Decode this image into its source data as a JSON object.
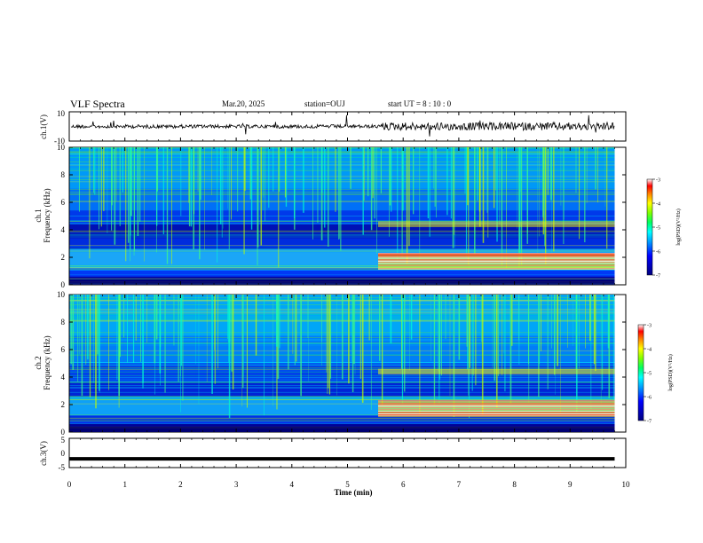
{
  "header": {
    "title": "VLF Spectra",
    "date": "Mar.20, 2025",
    "station": "station=OUJ",
    "start": "start  UT =   8  : 10 : 0"
  },
  "chart_data": [
    {
      "type": "line",
      "panel": "ch1-waveform",
      "ylabel": "ch.1(V)",
      "ylim": [
        -10,
        10
      ],
      "ytick_labels": [
        "10",
        "-10"
      ],
      "xlim": [
        0,
        10
      ],
      "note_values": "noise-like waveform centered at 0 V, amplitude increases after ~5.6 min"
    },
    {
      "type": "heatmap",
      "panel": "ch1-spectrogram",
      "ylabel": "ch.1\nFrequency (kHz)",
      "ylabel_line1": "ch.1",
      "ylabel_line2": "Frequency (kHz)",
      "xlim": [
        0,
        10
      ],
      "ylim": [
        0,
        10
      ],
      "yticks": [
        0,
        2,
        4,
        6,
        8,
        10
      ],
      "ytick_labels": [
        "0",
        "2",
        "4",
        "6",
        "8",
        "10"
      ],
      "data_x_end": 9.8,
      "colorbar": {
        "label": "log(PSD)(V²/Hz)",
        "range": [
          -7,
          -3
        ],
        "tick_labels": [
          "-3",
          "-4",
          "-5",
          "-6",
          "-7"
        ]
      }
    },
    {
      "type": "heatmap",
      "panel": "ch2-spectrogram",
      "ylabel_line1": "ch.2",
      "ylabel_line2": "Frequency (kHz)",
      "xlim": [
        0,
        10
      ],
      "ylim": [
        0,
        10
      ],
      "yticks": [
        0,
        2,
        4,
        6,
        8,
        10
      ],
      "ytick_labels": [
        "0",
        "2",
        "4",
        "6",
        "8",
        "10"
      ],
      "data_x_end": 9.8,
      "colorbar": {
        "label": "log(PSD)(V²/Hz)",
        "range": [
          -7,
          -3
        ],
        "tick_labels": [
          "-3",
          "-4",
          "-5",
          "-6",
          "-7"
        ]
      }
    },
    {
      "type": "line",
      "panel": "ch3-waveform",
      "ylabel": "ch.3(V)",
      "ylim": [
        -5,
        5
      ],
      "ytick_labels": [
        "5",
        "0",
        "-5"
      ],
      "xlim": [
        0,
        10
      ],
      "x_values": [
        0,
        9.8
      ],
      "y_values": [
        -2,
        -2
      ]
    }
  ],
  "xaxis": {
    "label": "Time (min)",
    "ticks": [
      0,
      1,
      2,
      3,
      4,
      5,
      6,
      7,
      8,
      9,
      10
    ],
    "tick_labels": [
      "0",
      "1",
      "2",
      "3",
      "4",
      "5",
      "6",
      "7",
      "8",
      "9",
      "10"
    ]
  },
  "colors": {
    "background": "#000080",
    "colormap": [
      "#00007f",
      "#0000ff",
      "#00a0ff",
      "#00ffff",
      "#00ff80",
      "#80ff00",
      "#ffff00",
      "#ff8000",
      "#ff0000",
      "#ffffff"
    ]
  }
}
